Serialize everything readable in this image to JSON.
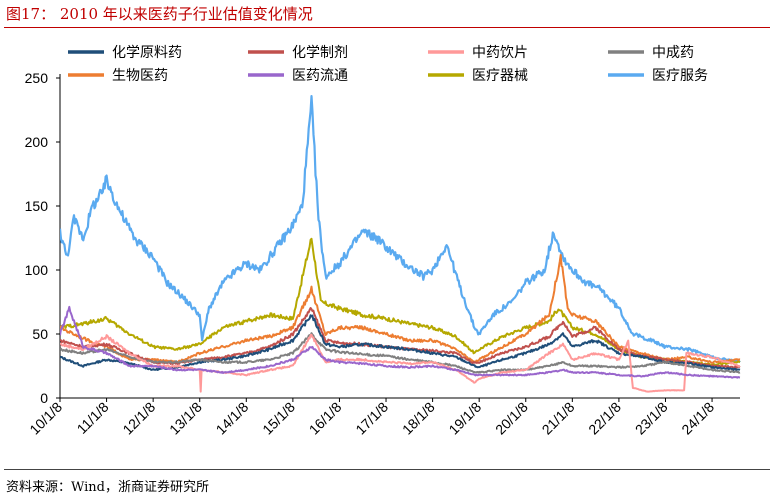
{
  "header": {
    "title": "图17：  2010 年以来医药子行业估值变化情况"
  },
  "footer": {
    "source": "资料来源：Wind，浙商证券研究所"
  },
  "chart_data": {
    "type": "line",
    "ylim": [
      0,
      250
    ],
    "yticks": [
      0,
      50,
      100,
      150,
      200,
      250
    ],
    "xtick_labels": [
      "10/1/8",
      "11/1/8",
      "12/1/8",
      "13/1/8",
      "14/1/8",
      "15/1/8",
      "16/1/8",
      "17/1/8",
      "18/1/8",
      "19/1/8",
      "20/1/8",
      "21/1/8",
      "22/1/8",
      "23/1/8",
      "24/1/8"
    ],
    "xlim": [
      2010.0,
      2024.6
    ],
    "grid": false,
    "legend": "top",
    "series": [
      {
        "name": "化学原料药",
        "color": "#1f4e79",
        "points": [
          [
            2010.0,
            32
          ],
          [
            2010.5,
            25
          ],
          [
            2011.0,
            30
          ],
          [
            2011.5,
            27
          ],
          [
            2012.0,
            22
          ],
          [
            2012.5,
            24
          ],
          [
            2013.0,
            28
          ],
          [
            2013.5,
            30
          ],
          [
            2014.0,
            33
          ],
          [
            2014.5,
            38
          ],
          [
            2015.0,
            45
          ],
          [
            2015.4,
            65
          ],
          [
            2015.7,
            42
          ],
          [
            2016.0,
            40
          ],
          [
            2016.5,
            42
          ],
          [
            2017.0,
            40
          ],
          [
            2017.5,
            38
          ],
          [
            2018.0,
            35
          ],
          [
            2018.5,
            32
          ],
          [
            2018.9,
            25
          ],
          [
            2019.0,
            24
          ],
          [
            2019.5,
            30
          ],
          [
            2020.0,
            35
          ],
          [
            2020.5,
            42
          ],
          [
            2020.8,
            50
          ],
          [
            2021.0,
            40
          ],
          [
            2021.5,
            45
          ],
          [
            2022.0,
            35
          ],
          [
            2022.5,
            32
          ],
          [
            2023.0,
            28
          ],
          [
            2023.5,
            27
          ],
          [
            2024.0,
            24
          ],
          [
            2024.6,
            22
          ]
        ]
      },
      {
        "name": "化学制剂",
        "color": "#c0504d",
        "points": [
          [
            2010.0,
            45
          ],
          [
            2010.5,
            40
          ],
          [
            2011.0,
            42
          ],
          [
            2011.5,
            35
          ],
          [
            2012.0,
            28
          ],
          [
            2012.5,
            27
          ],
          [
            2013.0,
            30
          ],
          [
            2013.5,
            32
          ],
          [
            2014.0,
            35
          ],
          [
            2014.5,
            40
          ],
          [
            2015.0,
            50
          ],
          [
            2015.4,
            70
          ],
          [
            2015.7,
            45
          ],
          [
            2016.0,
            43
          ],
          [
            2016.5,
            42
          ],
          [
            2017.0,
            40
          ],
          [
            2017.5,
            38
          ],
          [
            2018.0,
            37
          ],
          [
            2018.5,
            35
          ],
          [
            2018.9,
            27
          ],
          [
            2019.0,
            28
          ],
          [
            2019.5,
            35
          ],
          [
            2020.0,
            40
          ],
          [
            2020.5,
            48
          ],
          [
            2020.8,
            60
          ],
          [
            2021.0,
            48
          ],
          [
            2021.5,
            55
          ],
          [
            2022.0,
            38
          ],
          [
            2022.5,
            33
          ],
          [
            2023.0,
            30
          ],
          [
            2023.5,
            28
          ],
          [
            2024.0,
            25
          ],
          [
            2024.6,
            24
          ]
        ]
      },
      {
        "name": "中药饮片",
        "color": "#ff9999",
        "points": [
          [
            2010.0,
            42
          ],
          [
            2010.5,
            38
          ],
          [
            2011.0,
            48
          ],
          [
            2011.5,
            35
          ],
          [
            2012.0,
            25
          ],
          [
            2012.5,
            25
          ],
          [
            2013.0,
            22
          ],
          [
            2013.02,
            5
          ],
          [
            2013.04,
            22
          ],
          [
            2013.5,
            20
          ],
          [
            2014.0,
            18
          ],
          [
            2014.5,
            22
          ],
          [
            2015.0,
            25
          ],
          [
            2015.4,
            50
          ],
          [
            2015.7,
            28
          ],
          [
            2016.0,
            30
          ],
          [
            2016.5,
            30
          ],
          [
            2017.0,
            28
          ],
          [
            2017.5,
            27
          ],
          [
            2018.0,
            28
          ],
          [
            2018.5,
            22
          ],
          [
            2018.9,
            12
          ],
          [
            2019.0,
            15
          ],
          [
            2019.5,
            20
          ],
          [
            2020.0,
            22
          ],
          [
            2020.5,
            35
          ],
          [
            2020.8,
            42
          ],
          [
            2021.0,
            30
          ],
          [
            2021.5,
            35
          ],
          [
            2022.0,
            30
          ],
          [
            2022.2,
            45
          ],
          [
            2022.3,
            8
          ],
          [
            2022.6,
            5
          ],
          [
            2023.0,
            6
          ],
          [
            2023.4,
            6
          ],
          [
            2023.45,
            35
          ],
          [
            2024.0,
            32
          ],
          [
            2024.6,
            25
          ]
        ]
      },
      {
        "name": "中成药",
        "color": "#808080",
        "points": [
          [
            2010.0,
            38
          ],
          [
            2010.5,
            35
          ],
          [
            2011.0,
            38
          ],
          [
            2011.5,
            32
          ],
          [
            2012.0,
            28
          ],
          [
            2012.5,
            28
          ],
          [
            2013.0,
            30
          ],
          [
            2013.5,
            28
          ],
          [
            2014.0,
            28
          ],
          [
            2014.5,
            30
          ],
          [
            2015.0,
            35
          ],
          [
            2015.4,
            50
          ],
          [
            2015.7,
            38
          ],
          [
            2016.0,
            36
          ],
          [
            2016.5,
            34
          ],
          [
            2017.0,
            33
          ],
          [
            2017.5,
            30
          ],
          [
            2018.0,
            28
          ],
          [
            2018.5,
            25
          ],
          [
            2018.9,
            20
          ],
          [
            2019.0,
            20
          ],
          [
            2019.5,
            22
          ],
          [
            2020.0,
            22
          ],
          [
            2020.5,
            25
          ],
          [
            2020.8,
            28
          ],
          [
            2021.0,
            25
          ],
          [
            2021.5,
            25
          ],
          [
            2022.0,
            24
          ],
          [
            2022.5,
            25
          ],
          [
            2023.0,
            28
          ],
          [
            2023.5,
            25
          ],
          [
            2024.0,
            22
          ],
          [
            2024.6,
            20
          ]
        ]
      },
      {
        "name": "生物医药",
        "color": "#ed7d31",
        "points": [
          [
            2010.0,
            55
          ],
          [
            2010.3,
            50
          ],
          [
            2010.6,
            45
          ],
          [
            2011.0,
            40
          ],
          [
            2011.5,
            30
          ],
          [
            2012.0,
            30
          ],
          [
            2012.5,
            28
          ],
          [
            2013.0,
            35
          ],
          [
            2013.5,
            40
          ],
          [
            2014.0,
            45
          ],
          [
            2014.5,
            48
          ],
          [
            2015.0,
            55
          ],
          [
            2015.4,
            85
          ],
          [
            2015.7,
            50
          ],
          [
            2016.0,
            55
          ],
          [
            2016.5,
            55
          ],
          [
            2017.0,
            50
          ],
          [
            2017.5,
            45
          ],
          [
            2018.0,
            45
          ],
          [
            2018.5,
            38
          ],
          [
            2018.9,
            28
          ],
          [
            2019.0,
            30
          ],
          [
            2019.5,
            40
          ],
          [
            2020.0,
            50
          ],
          [
            2020.5,
            65
          ],
          [
            2020.75,
            110
          ],
          [
            2020.9,
            70
          ],
          [
            2021.0,
            65
          ],
          [
            2021.5,
            60
          ],
          [
            2022.0,
            40
          ],
          [
            2022.5,
            35
          ],
          [
            2023.0,
            30
          ],
          [
            2023.5,
            32
          ],
          [
            2024.0,
            28
          ],
          [
            2024.6,
            30
          ]
        ]
      },
      {
        "name": "医药流通",
        "color": "#9966cc",
        "points": [
          [
            2010.0,
            50
          ],
          [
            2010.2,
            70
          ],
          [
            2010.5,
            40
          ],
          [
            2011.0,
            35
          ],
          [
            2011.5,
            25
          ],
          [
            2012.0,
            25
          ],
          [
            2012.5,
            22
          ],
          [
            2013.0,
            22
          ],
          [
            2013.5,
            20
          ],
          [
            2014.0,
            22
          ],
          [
            2014.5,
            25
          ],
          [
            2015.0,
            30
          ],
          [
            2015.4,
            40
          ],
          [
            2015.7,
            30
          ],
          [
            2016.0,
            28
          ],
          [
            2016.5,
            27
          ],
          [
            2017.0,
            25
          ],
          [
            2017.5,
            24
          ],
          [
            2018.0,
            25
          ],
          [
            2018.5,
            22
          ],
          [
            2018.9,
            18
          ],
          [
            2019.0,
            18
          ],
          [
            2019.5,
            18
          ],
          [
            2020.0,
            18
          ],
          [
            2020.5,
            20
          ],
          [
            2020.8,
            22
          ],
          [
            2021.0,
            20
          ],
          [
            2021.5,
            20
          ],
          [
            2022.0,
            18
          ],
          [
            2022.5,
            17
          ],
          [
            2023.0,
            20
          ],
          [
            2023.5,
            18
          ],
          [
            2024.0,
            17
          ],
          [
            2024.6,
            16
          ]
        ]
      },
      {
        "name": "医疗器械",
        "color": "#b5a800",
        "points": [
          [
            2010.0,
            55
          ],
          [
            2010.5,
            58
          ],
          [
            2011.0,
            62
          ],
          [
            2011.5,
            50
          ],
          [
            2012.0,
            40
          ],
          [
            2012.5,
            38
          ],
          [
            2013.0,
            42
          ],
          [
            2013.5,
            55
          ],
          [
            2014.0,
            60
          ],
          [
            2014.5,
            65
          ],
          [
            2015.0,
            62
          ],
          [
            2015.4,
            125
          ],
          [
            2015.6,
            75
          ],
          [
            2016.0,
            70
          ],
          [
            2016.5,
            65
          ],
          [
            2017.0,
            62
          ],
          [
            2017.5,
            58
          ],
          [
            2018.0,
            55
          ],
          [
            2018.5,
            48
          ],
          [
            2018.9,
            35
          ],
          [
            2019.0,
            38
          ],
          [
            2019.5,
            48
          ],
          [
            2020.0,
            55
          ],
          [
            2020.5,
            60
          ],
          [
            2020.7,
            70
          ],
          [
            2021.0,
            55
          ],
          [
            2021.5,
            50
          ],
          [
            2022.0,
            38
          ],
          [
            2022.5,
            32
          ],
          [
            2023.0,
            30
          ],
          [
            2023.5,
            28
          ],
          [
            2024.0,
            26
          ],
          [
            2024.6,
            28
          ]
        ]
      },
      {
        "name": "医疗服务",
        "color": "#5aaaf0",
        "points": [
          [
            2010.0,
            130
          ],
          [
            2010.15,
            110
          ],
          [
            2010.3,
            140
          ],
          [
            2010.5,
            125
          ],
          [
            2010.7,
            150
          ],
          [
            2010.9,
            160
          ],
          [
            2011.0,
            170
          ],
          [
            2011.3,
            145
          ],
          [
            2011.6,
            125
          ],
          [
            2012.0,
            110
          ],
          [
            2012.3,
            90
          ],
          [
            2012.6,
            80
          ],
          [
            2013.0,
            65
          ],
          [
            2013.05,
            45
          ],
          [
            2013.2,
            70
          ],
          [
            2013.5,
            90
          ],
          [
            2013.8,
            100
          ],
          [
            2014.0,
            105
          ],
          [
            2014.3,
            100
          ],
          [
            2014.6,
            115
          ],
          [
            2015.0,
            135
          ],
          [
            2015.2,
            150
          ],
          [
            2015.4,
            230
          ],
          [
            2015.55,
            140
          ],
          [
            2015.7,
            95
          ],
          [
            2016.0,
            105
          ],
          [
            2016.3,
            120
          ],
          [
            2016.5,
            130
          ],
          [
            2016.8,
            125
          ],
          [
            2017.0,
            118
          ],
          [
            2017.4,
            105
          ],
          [
            2017.8,
            95
          ],
          [
            2018.0,
            100
          ],
          [
            2018.3,
            120
          ],
          [
            2018.6,
            85
          ],
          [
            2018.9,
            55
          ],
          [
            2019.0,
            50
          ],
          [
            2019.3,
            65
          ],
          [
            2019.7,
            75
          ],
          [
            2020.0,
            90
          ],
          [
            2020.4,
            100
          ],
          [
            2020.6,
            130
          ],
          [
            2020.8,
            110
          ],
          [
            2021.0,
            100
          ],
          [
            2021.3,
            90
          ],
          [
            2021.6,
            85
          ],
          [
            2022.0,
            70
          ],
          [
            2022.3,
            50
          ],
          [
            2022.7,
            45
          ],
          [
            2023.0,
            40
          ],
          [
            2023.5,
            38
          ],
          [
            2024.0,
            32
          ],
          [
            2024.6,
            28
          ]
        ]
      }
    ]
  }
}
